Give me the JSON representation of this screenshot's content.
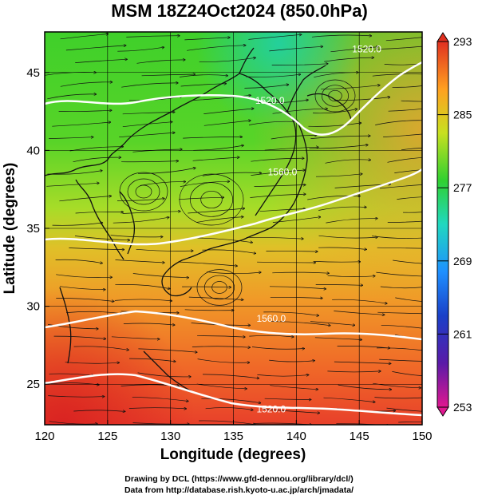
{
  "title": "MSM 18Z24Oct2024 (850.0hPa)",
  "x_axis": {
    "label": "Longitude (degrees)",
    "range": [
      120,
      150
    ],
    "ticks": [
      "120",
      "125",
      "130",
      "135",
      "140",
      "145",
      "150"
    ]
  },
  "y_axis": {
    "label": "Latitude  (degrees)",
    "range": [
      22.4,
      47.6
    ],
    "ticks": [
      "25",
      "30",
      "35",
      "40",
      "45"
    ]
  },
  "colorbar": {
    "range": [
      253,
      293
    ],
    "ticks": [
      "293",
      "285",
      "277",
      "269",
      "261",
      "253"
    ],
    "colors": [
      "#e01890",
      "#2020b0",
      "#1e90ff",
      "#20d8c0",
      "#30d030",
      "#c8e020",
      "#ffa020",
      "#e03020"
    ]
  },
  "contours": [
    {
      "label": "1520.0",
      "lon": 145.6,
      "lat": 46.3
    },
    {
      "label": "1520.0",
      "lon": 137.9,
      "lat": 43.0
    },
    {
      "label": "1560.0",
      "lon": 138.9,
      "lat": 38.4
    },
    {
      "label": "1560.0",
      "lon": 138.0,
      "lat": 29.0
    },
    {
      "label": "1520.0",
      "lon": 138.0,
      "lat": 23.2
    }
  ],
  "credits": [
    "Drawing by DCL (https://www.gfd-dennou.org/library/dcl/)",
    "Data from http://database.rish.kyoto-u.ac.jp/arch/jmadata/"
  ]
}
